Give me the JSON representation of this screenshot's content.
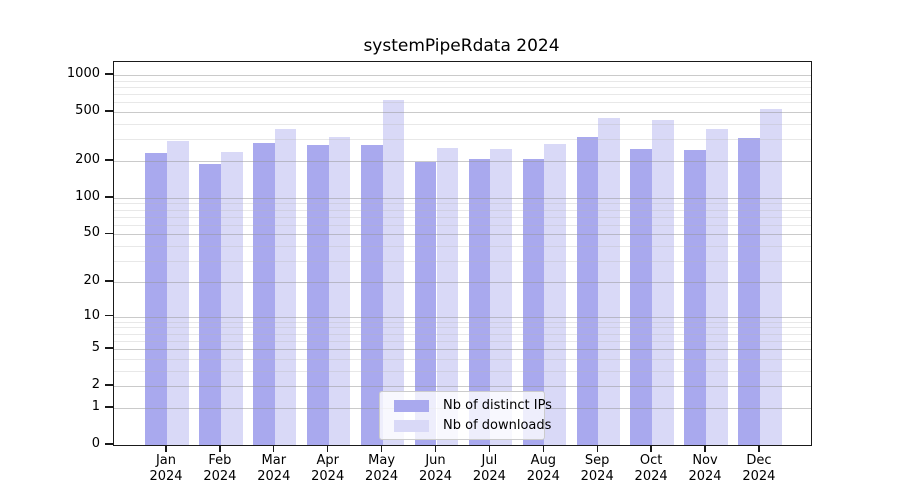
{
  "title": "systemPipeRdata 2024",
  "legend": {
    "items": [
      {
        "label": "Nb of distinct IPs",
        "color": "#a9a9ee"
      },
      {
        "label": "Nb of downloads",
        "color": "#d9d9f7"
      }
    ]
  },
  "chart_data": {
    "type": "bar",
    "title": "systemPipeRdata 2024",
    "categories": [
      "Jan",
      "Feb",
      "Mar",
      "Apr",
      "May",
      "Jun",
      "Jul",
      "Aug",
      "Sep",
      "Oct",
      "Nov",
      "Dec"
    ],
    "category_year": "2024",
    "series": [
      {
        "name": "Nb of distinct IPs",
        "color": "#a9a9ee",
        "values": [
          234,
          190,
          280,
          270,
          270,
          197,
          207,
          207,
          312,
          252,
          248,
          308
        ]
      },
      {
        "name": "Nb of downloads",
        "color": "#d9d9f7",
        "values": [
          291,
          237,
          366,
          315,
          630,
          255,
          253,
          274,
          445,
          434,
          366,
          533
        ]
      }
    ],
    "xlabel": "",
    "ylabel": "",
    "yscale": "log10(value+1)",
    "ylim": [
      0,
      1277
    ],
    "ytick_values": [
      0,
      1,
      2,
      5,
      10,
      20,
      50,
      100,
      200,
      500,
      1000
    ],
    "ytick_labels": [
      "0",
      "1",
      "2",
      "5",
      "10",
      "20",
      "50",
      "100",
      "200",
      "500",
      "1000"
    ],
    "minor_gridline_values": [
      3,
      4,
      6,
      7,
      8,
      9,
      30,
      40,
      60,
      70,
      80,
      90,
      300,
      400,
      600,
      700,
      800,
      900
    ],
    "grid": "horizontal",
    "legend_position": "lower center inside plot"
  }
}
